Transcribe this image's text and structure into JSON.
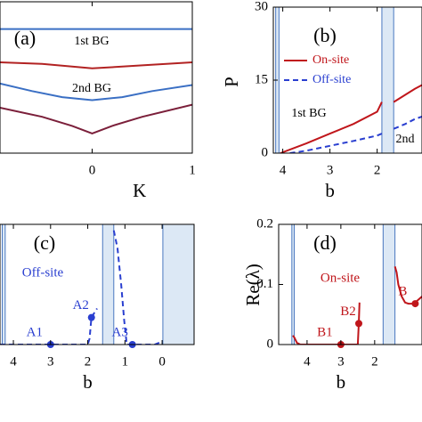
{
  "chart_data": [
    {
      "type": "line",
      "panel": "(a)",
      "x_label": "K",
      "xlim": [
        -0.92,
        1
      ],
      "ylim": [
        0,
        1
      ],
      "xticks": [
        0,
        1
      ],
      "annotations": [
        {
          "text": "(a)"
        },
        {
          "text": "1st BG"
        },
        {
          "text": "2nd BG"
        }
      ],
      "series": [
        {
          "color": "#3a6fc4",
          "x": [
            -0.92,
            1
          ],
          "values": [
            0.82,
            0.82
          ]
        },
        {
          "color": "#b22222",
          "x": [
            -0.92,
            -0.5,
            0,
            0.5,
            1
          ],
          "values": [
            0.6,
            0.59,
            0.56,
            0.58,
            0.6
          ]
        },
        {
          "color": "#3a6fc4",
          "x": [
            -0.92,
            -0.6,
            -0.3,
            0,
            0.3,
            0.6,
            1
          ],
          "values": [
            0.46,
            0.41,
            0.37,
            0.35,
            0.37,
            0.41,
            0.45
          ]
        },
        {
          "color": "#7b1f3a",
          "x": [
            -0.92,
            -0.5,
            -0.2,
            0,
            0.2,
            0.5,
            1
          ],
          "values": [
            0.3,
            0.24,
            0.18,
            0.13,
            0.18,
            0.24,
            0.32
          ]
        }
      ]
    },
    {
      "type": "line",
      "panel": "(b)",
      "x_label": "b",
      "y_label": "P",
      "xlim": [
        4.2,
        1.05
      ],
      "ylim": [
        0,
        30
      ],
      "xticks": [
        4,
        3,
        2
      ],
      "yticks": [
        0,
        15,
        30
      ],
      "shaded_regions": [
        [
          4.15,
          4.08
        ],
        [
          1.9,
          1.65
        ]
      ],
      "legend": "upper left",
      "annotations": [
        {
          "text": "(b)"
        },
        {
          "text": "1st BG"
        },
        {
          "text": "2nd"
        }
      ],
      "series": [
        {
          "name": "On-site",
          "color": "#c0161b",
          "dash": false,
          "x": [
            4.05,
            3.5,
            3,
            2.5,
            2,
            1.9,
            null,
            1.65,
            1.4,
            1.2,
            1.05
          ],
          "values": [
            0,
            2,
            4,
            6,
            8.5,
            10.5,
            null,
            10.5,
            12,
            13.2,
            14
          ]
        },
        {
          "name": "Off-site",
          "color": "#2a3fd0",
          "dash": true,
          "x": [
            3.85,
            3.5,
            3,
            2.5,
            2,
            1.9,
            null,
            1.65,
            1.4,
            1.2,
            1.05
          ],
          "values": [
            0,
            0.5,
            1.5,
            2.5,
            3.6,
            4,
            null,
            5,
            6,
            7,
            7.5
          ]
        }
      ]
    },
    {
      "type": "line",
      "panel": "(c)",
      "x_label": "b",
      "xlim": [
        4.36,
        -0.86
      ],
      "ylim": [
        0,
        0.2
      ],
      "xticks": [
        4,
        3,
        2,
        1,
        0
      ],
      "shaded_regions": [
        [
          4.3,
          4.22
        ],
        [
          1.6,
          1.3
        ],
        [
          -0.02,
          -0.86
        ]
      ],
      "annotations": [
        {
          "text": "(c)"
        },
        {
          "text": "Off-site",
          "color": "#2a3fd0"
        }
      ],
      "series": [
        {
          "color": "#2a3fd0",
          "dash": true,
          "x": [
            4.36,
            3,
            2,
            1.95,
            1.9,
            1.75,
            null,
            1.3,
            1.2,
            1.1,
            1.02,
            0.95,
            0.5,
            0.2,
            0
          ],
          "values": [
            0,
            0,
            0,
            0.01,
            0.045,
            0.06,
            null,
            0.19,
            0.16,
            0.1,
            0.04,
            0,
            0,
            0,
            0.005
          ]
        }
      ],
      "markers": [
        {
          "label": "A1",
          "x": 3,
          "y": 0
        },
        {
          "label": "A2",
          "x": 1.9,
          "y": 0.045
        },
        {
          "label": "A3",
          "x": 0.8,
          "y": 0
        }
      ],
      "marker_color": "#2a3fd0"
    },
    {
      "type": "line",
      "panel": "(d)",
      "x_label": "b",
      "y_label": "Re(λ)",
      "xlim": [
        4.84,
        0.6
      ],
      "ylim": [
        0,
        0.2
      ],
      "xticks": [
        4,
        3,
        2
      ],
      "yticks": [
        0,
        0.1,
        0.2
      ],
      "shaded_regions": [
        [
          4.45,
          4.38
        ],
        [
          1.75,
          1.4
        ]
      ],
      "annotations": [
        {
          "text": "(d)"
        },
        {
          "text": "On-site",
          "color": "#c0161b"
        }
      ],
      "series": [
        {
          "color": "#c0161b",
          "dash": false,
          "x": [
            4.42,
            4.38,
            4.3,
            4.2,
            3,
            2.5,
            2.47,
            2.45,
            null,
            1.4,
            1.35,
            1.3,
            1.2,
            1.1,
            1.0,
            0.9,
            0.8,
            0.6
          ],
          "values": [
            0.015,
            0.012,
            0.003,
            0,
            0,
            0,
            0.035,
            0.07,
            null,
            0.13,
            0.12,
            0.1,
            0.08,
            0.07,
            0.068,
            0.068,
            0.07,
            0.08
          ]
        }
      ],
      "markers": [
        {
          "label": "B1",
          "x": 3,
          "y": 0
        },
        {
          "label": "B2",
          "x": 2.47,
          "y": 0.035
        },
        {
          "label": "B",
          "x": 0.8,
          "y": 0.068
        }
      ],
      "marker_color": "#c0161b"
    }
  ]
}
